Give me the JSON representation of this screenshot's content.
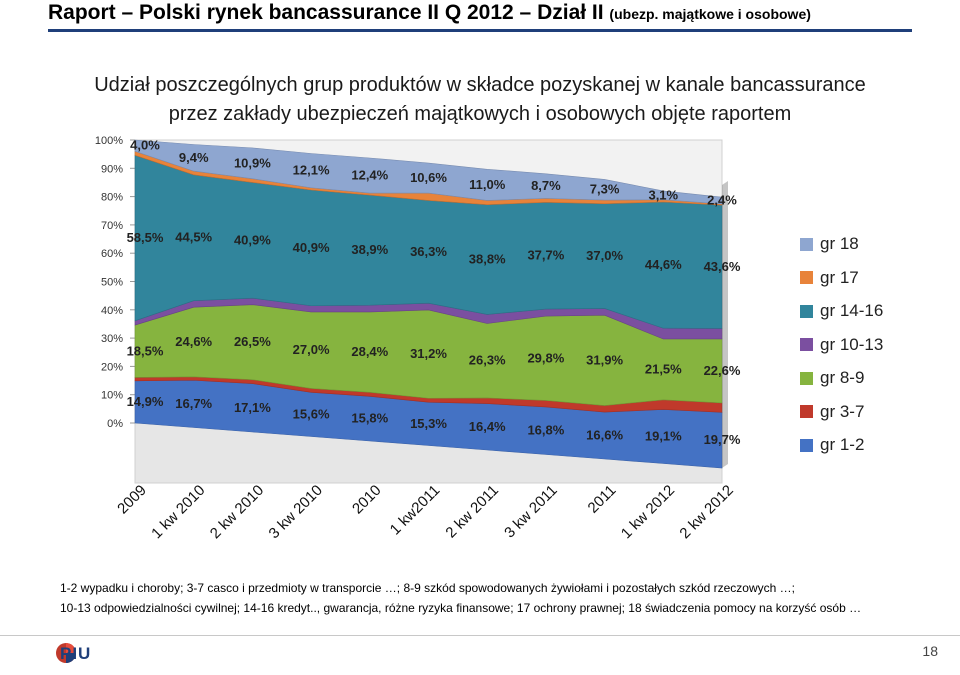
{
  "slide": {
    "title_main": "Raport – Polski rynek bancassurance II Q 2012 – Dział II ",
    "title_sub": "(ubezp. majątkowe i osobowe)",
    "page_number": "18",
    "logo_text": "PIU"
  },
  "chart_title": {
    "line1": "Udział poszczególnych grup produktów w składce pozyskanej w kanale bancassurance",
    "line2": "przez zakłady ubezpieczeń majątkowych i osobowych objęte raportem"
  },
  "footnotes": {
    "line1": "1-2 wypadku i choroby; 3-7 casco i przedmioty w transporcie …; 8-9 szkód spowodowanych żywiołami i pozostałych szkód rzeczowych …;",
    "line2": "10-13 odpowiedzialności cywilnej; 14-16 kredyt.., gwarancja, różne ryzyka finansowe; 17 ochrony prawnej; 18 świadczenia pomocy na korzyść osób …"
  },
  "chart_data": {
    "type": "area",
    "stacked": true,
    "percent": true,
    "categories": [
      "2009",
      "1 kw 2010",
      "2 kw 2010",
      "3 kw 2010",
      "2010",
      "1 kw2011",
      "2 kw 2011",
      "3 kw 2011",
      "2011",
      "1 kw 2012",
      "2 kw 2012"
    ],
    "y_ticks": [
      "0%",
      "10%",
      "20%",
      "30%",
      "40%",
      "50%",
      "60%",
      "70%",
      "80%",
      "90%",
      "100%"
    ],
    "ylim": [
      0,
      100
    ],
    "legend_position": "right",
    "series": [
      {
        "name": "gr 1-2",
        "color": "#4472C4",
        "values": [
          14.9,
          16.7,
          17.1,
          15.6,
          15.8,
          15.3,
          16.4,
          16.8,
          16.6,
          19.1,
          19.7
        ],
        "labels": [
          "14,9%",
          "16,7%",
          "17,1%",
          "15,6%",
          "15,8%",
          "15,3%",
          "16,4%",
          "16,8%",
          "16,6%",
          "19,1%",
          "19,7%"
        ]
      },
      {
        "name": "gr 3-7",
        "color": "#C0392B",
        "values": [
          1.2,
          1.2,
          1.4,
          1.4,
          1.4,
          1.4,
          2.0,
          2.3,
          2.3,
          3.4,
          3.3
        ],
        "labels": []
      },
      {
        "name": "gr 8-9",
        "color": "#86B43F",
        "values": [
          18.5,
          24.6,
          26.5,
          27.0,
          28.4,
          31.2,
          26.3,
          29.8,
          31.9,
          21.5,
          22.6
        ],
        "labels": [
          "18,5%",
          "24,6%",
          "26,5%",
          "27,0%",
          "28,4%",
          "31,2%",
          "26,3%",
          "29,8%",
          "31,9%",
          "21,5%",
          "22,6%"
        ]
      },
      {
        "name": "gr 10-13",
        "color": "#7B4FA0",
        "values": [
          1.5,
          2.3,
          2.3,
          2.2,
          2.4,
          2.4,
          3.2,
          2.5,
          2.4,
          3.8,
          3.7
        ],
        "labels": []
      },
      {
        "name": "gr 14-16",
        "color": "#31859C",
        "values": [
          58.5,
          44.5,
          40.9,
          40.9,
          38.9,
          36.3,
          38.8,
          37.7,
          37.0,
          44.6,
          43.6
        ],
        "labels": [
          "58,5%",
          "44,5%",
          "40,9%",
          "40,9%",
          "38,9%",
          "36,3%",
          "38,8%",
          "37,7%",
          "37,0%",
          "44,6%",
          "43,6%"
        ]
      },
      {
        "name": "gr 17",
        "color": "#E8833A",
        "values": [
          1.4,
          1.3,
          1.3,
          0.8,
          0.7,
          2.6,
          1.5,
          1.4,
          1.3,
          0.8,
          0.4
        ],
        "labels": []
      },
      {
        "name": "gr 18",
        "color": "#8EA6D0",
        "values": [
          4.0,
          9.4,
          10.9,
          12.1,
          12.4,
          10.6,
          11.0,
          8.7,
          7.3,
          3.1,
          2.4
        ],
        "labels": [
          "4,0%",
          "9,4%",
          "10,9%",
          "12,1%",
          "12,4%",
          "10,6%",
          "11,0%",
          "8,7%",
          "7,3%",
          "3,1%",
          "2,4%"
        ]
      }
    ]
  }
}
